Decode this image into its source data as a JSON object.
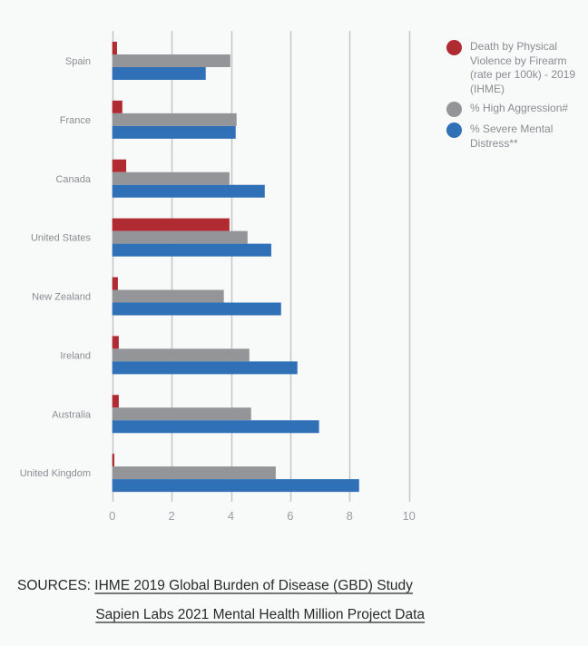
{
  "chart_data": {
    "type": "bar",
    "orientation": "horizontal",
    "title": "",
    "xlabel": "",
    "ylabel": "",
    "categories": [
      "Spain",
      "France",
      "Canada",
      "United States",
      "New Zealand",
      "Ireland",
      "Australia",
      "United Kingdom"
    ],
    "series": [
      {
        "name": "Death by Physical Violence by Firearm (rate per 100k) - 2019 (IHME)",
        "color": "#b02a31",
        "values": [
          0.16,
          0.34,
          0.47,
          3.95,
          0.19,
          0.22,
          0.22,
          0.07
        ]
      },
      {
        "name": "% High Aggression#",
        "color": "#939598",
        "values": [
          3.98,
          4.19,
          3.95,
          4.56,
          3.76,
          4.62,
          4.68,
          5.51
        ]
      },
      {
        "name": "% Severe Mental Distress**",
        "color": "#3070b7",
        "values": [
          3.15,
          4.16,
          5.14,
          5.36,
          5.69,
          6.24,
          6.97,
          8.32
        ]
      }
    ],
    "xlim": [
      0,
      10
    ],
    "xticks": [
      "0",
      "2",
      "4",
      "6",
      "8",
      "10"
    ],
    "grid": true,
    "legend_position": "top-right"
  },
  "legend": [
    {
      "label": "Death by Physical Violence by Firearm (rate per 100k) - 2019 (IHME)",
      "color": "#b02a31"
    },
    {
      "label": "% High Aggression#",
      "color": "#939598"
    },
    {
      "label": "% Severe Mental Distress**",
      "color": "#3070b7"
    }
  ],
  "sources": {
    "prefix": "SOURCES:",
    "links": [
      "IHME 2019 Global Burden of Disease (GBD) Study",
      "Sapien Labs 2021 Mental Health Million Project Data"
    ]
  }
}
